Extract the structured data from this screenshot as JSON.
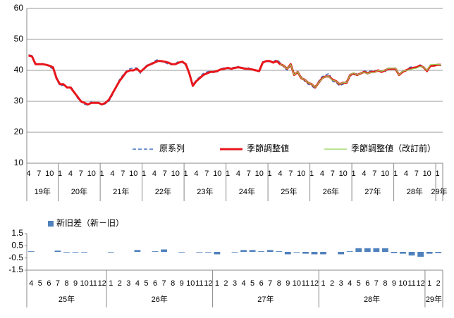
{
  "chart_data": [
    {
      "type": "line",
      "categories": [
        "4",
        null,
        null,
        "7",
        null,
        null,
        "10",
        null,
        null,
        "1",
        null,
        null,
        "4",
        null,
        null,
        "7",
        null,
        null,
        "10",
        null,
        null,
        "1",
        null,
        null,
        "4",
        null,
        null,
        "7",
        null,
        null,
        "10",
        null,
        null,
        "1",
        null,
        null,
        "4",
        null,
        null,
        "7",
        null,
        null,
        "10",
        null,
        null,
        "1",
        null,
        null,
        "4",
        null,
        null,
        "7",
        null,
        null,
        "10",
        null,
        null,
        "1",
        null,
        null,
        "4",
        null,
        null,
        "7",
        null,
        null,
        "10",
        null,
        null,
        "1",
        null,
        null,
        "4",
        null,
        null,
        "7",
        null,
        null,
        "10",
        null,
        null,
        "1",
        null,
        null,
        "4",
        null,
        null,
        "7",
        null,
        null,
        "10",
        null,
        null,
        "1",
        null,
        null,
        "4",
        null,
        null,
        "7",
        null,
        null,
        "10",
        null,
        null,
        "1",
        null,
        null,
        "4",
        null,
        null,
        "7",
        null,
        null,
        "10",
        null,
        null,
        "1",
        null
      ],
      "groups": [
        {
          "label": "19年",
          "months": 9
        },
        {
          "label": "20年",
          "months": 12
        },
        {
          "label": "21年",
          "months": 12
        },
        {
          "label": "22年",
          "months": 12
        },
        {
          "label": "23年",
          "months": 12
        },
        {
          "label": "24年",
          "months": 12
        },
        {
          "label": "25年",
          "months": 12
        },
        {
          "label": "26年",
          "months": 12
        },
        {
          "label": "27年",
          "months": 12
        },
        {
          "label": "28年",
          "months": 12
        },
        {
          "label": "29年",
          "months": 2
        }
      ],
      "series": [
        {
          "name": "原系列",
          "color": "#4472c4",
          "dashed": true,
          "width": 1.5,
          "values": [
            45,
            44.8,
            42.3,
            42,
            42.2,
            42,
            41,
            40.5,
            37,
            35,
            35.2,
            34.3,
            34.8,
            33.5,
            31,
            29.8,
            29,
            28.8,
            30,
            29.5,
            29.8,
            28.8,
            29.2,
            30,
            32,
            34.8,
            37,
            38.5,
            39.8,
            40.5,
            40.8,
            40.8,
            39,
            40.8,
            41.8,
            42.2,
            43,
            43.5,
            42.8,
            42.5,
            42,
            41.8,
            42.2,
            43,
            42.5,
            41.5,
            38.5,
            35.5,
            36.8,
            38,
            39,
            39.5,
            39.8,
            39.3,
            39.5,
            40.5,
            40.8,
            40.5,
            40.8,
            41,
            41.3,
            40.5,
            40.8,
            40.8,
            40,
            40.2,
            39.5,
            42.8,
            42.8,
            42.8,
            42.8,
            43.5,
            42.5,
            41,
            40,
            41.5,
            39,
            39,
            38,
            36.5,
            35.5,
            35,
            34,
            36.5,
            38,
            38.5,
            39,
            36.5,
            36,
            35,
            35.5,
            36.5,
            38.2,
            38.5,
            39,
            38.8,
            39.8,
            39.5,
            39.8,
            40,
            39.5,
            39.8,
            39.5,
            40.8,
            40.3,
            40.8,
            38.5,
            39.8,
            39.8,
            41,
            41.2,
            40.8,
            41.8,
            41.2,
            39.5,
            41.8,
            41.5,
            42,
            41.5
          ]
        },
        {
          "name": "季節調整値",
          "color": "#e8161b",
          "dashed": false,
          "width": 3,
          "values": [
            44.8,
            44.5,
            42,
            42,
            42,
            41.8,
            41.5,
            41,
            37.5,
            35.5,
            35.5,
            34.5,
            34.5,
            33,
            31.5,
            30,
            29.5,
            29,
            29.5,
            29.5,
            29.5,
            29,
            29.5,
            30.5,
            32.5,
            34.5,
            36.5,
            38,
            39.5,
            40,
            40,
            40.5,
            39.5,
            40.5,
            41.5,
            42,
            42.5,
            43,
            43,
            42.8,
            42.5,
            42,
            42,
            42.5,
            42.8,
            42,
            39,
            35,
            36.5,
            37.5,
            38.5,
            39,
            39.5,
            39.5,
            39.8,
            40.3,
            40.5,
            40.8,
            40.5,
            40.8,
            41,
            40.8,
            40.5,
            40.5,
            40.3,
            40,
            39.8,
            42.5,
            43,
            43,
            42.5,
            43,
            42,
            41.5,
            40.5,
            42,
            38.5,
            39.5,
            37.5,
            37,
            36,
            35.5,
            34.5,
            36,
            37.5,
            38,
            38,
            37,
            36.5,
            35.5,
            36,
            36,
            38.5,
            39,
            38.5,
            39,
            39.5,
            39,
            39.5,
            39.5,
            40,
            39.5,
            40,
            40.5,
            40.5,
            40.5,
            38.5,
            39.5,
            40,
            40.5,
            40.8,
            41,
            41.5,
            41,
            39.8,
            41.5,
            41.5,
            41.8,
            41.8
          ]
        },
        {
          "name": "季節調整値（改訂前）",
          "color": "#92d050",
          "dashed": false,
          "width": 1.2,
          "values": [
            null,
            null,
            null,
            null,
            null,
            null,
            null,
            null,
            null,
            null,
            null,
            null,
            null,
            null,
            null,
            null,
            null,
            null,
            null,
            null,
            null,
            null,
            null,
            null,
            null,
            null,
            null,
            null,
            null,
            null,
            null,
            null,
            null,
            null,
            null,
            null,
            null,
            null,
            null,
            null,
            null,
            null,
            null,
            null,
            null,
            null,
            null,
            null,
            null,
            null,
            null,
            null,
            null,
            null,
            null,
            null,
            null,
            null,
            null,
            null,
            null,
            null,
            null,
            null,
            null,
            null,
            null,
            null,
            null,
            null,
            null,
            null,
            41.95,
            41.5,
            40.5,
            41.9,
            38.55,
            39.55,
            37.55,
            37,
            36,
            35.55,
            34.5,
            36,
            37.35,
            38,
            37.95,
            36.8,
            36.5,
            35.55,
            36,
            36.05,
            38.55,
            39.2,
            38.5,
            39.05,
            39.35,
            38.85,
            39.45,
            39.35,
            39.95,
            39.7,
            40.05,
            40.65,
            40.7,
            40.7,
            38.5,
            39.7,
            39.95,
            40.2,
            40.5,
            40.7,
            41.2,
            41.1,
            39.95,
            41.8,
            41.9,
            41.95,
            41.9
          ]
        }
      ],
      "ylim": [
        10,
        60
      ],
      "yticks": [
        10,
        20,
        30,
        40,
        50,
        60
      ],
      "grid": true,
      "legend": "bottom-right"
    },
    {
      "type": "bar",
      "categories": [
        "4",
        "5",
        "6",
        "7",
        "8",
        "9",
        "10",
        "11",
        "12",
        "1",
        "2",
        "3",
        "4",
        "5",
        "6",
        "7",
        "8",
        "9",
        "10",
        "11",
        "12",
        "1",
        "2",
        "3",
        "4",
        "5",
        "6",
        "7",
        "8",
        "9",
        "10",
        "11",
        "12",
        "1",
        "2",
        "3",
        "4",
        "5",
        "6",
        "7",
        "8",
        "9",
        "10",
        "11",
        "12",
        "1",
        "2"
      ],
      "groups": [
        {
          "label": "25年",
          "months": 9
        },
        {
          "label": "26年",
          "months": 12
        },
        {
          "label": "27年",
          "months": 12
        },
        {
          "label": "28年",
          "months": 12
        },
        {
          "label": "29年",
          "months": 2
        }
      ],
      "series": [
        {
          "name": "新旧差（新－旧）",
          "color": "#4f81bd",
          "values": [
            0.05,
            0,
            0,
            0.1,
            -0.05,
            -0.05,
            -0.05,
            0,
            0,
            -0.05,
            0,
            0,
            0.15,
            0,
            0.05,
            0.2,
            0,
            -0.05,
            0,
            -0.05,
            -0.05,
            -0.2,
            0,
            -0.05,
            0.15,
            0.15,
            0.05,
            0.15,
            0.05,
            -0.2,
            -0.05,
            -0.15,
            -0.2,
            -0.2,
            0,
            -0.2,
            0.05,
            0.3,
            0.3,
            0.3,
            0.3,
            -0.1,
            -0.15,
            -0.3,
            -0.4,
            -0.15,
            -0.1
          ]
        }
      ],
      "ylim": [
        -1.5,
        1.5
      ],
      "yticks": [
        -1.5,
        -0.5,
        0.5,
        1.5
      ],
      "grid": false,
      "legend": "top-left"
    }
  ]
}
